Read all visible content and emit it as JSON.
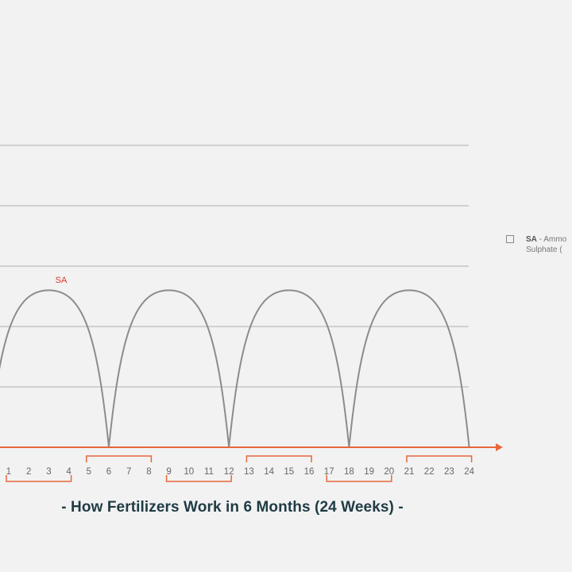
{
  "chart_data": {
    "type": "line",
    "title": "- How Fertilizers Work in 6 Months (24 Weeks) -",
    "xlabel": "",
    "ylabel": "",
    "x_ticks": [
      "1",
      "2",
      "3",
      "4",
      "5",
      "6",
      "7",
      "8",
      "9",
      "10",
      "11",
      "12",
      "13",
      "14",
      "15",
      "16",
      "17",
      "18",
      "19",
      "20",
      "21",
      "22",
      "23",
      "24"
    ],
    "xlim": [
      0,
      24
    ],
    "ylim": [
      0,
      5
    ],
    "grid": true,
    "series": [
      {
        "label": "SA",
        "x": [
          0,
          3,
          6,
          9,
          12,
          15,
          18,
          21,
          24
        ],
        "y": [
          0,
          2.6,
          0,
          2.6,
          0,
          2.6,
          0,
          2.6,
          0
        ],
        "shape": "arches"
      }
    ],
    "month_brackets": [
      [
        1,
        4
      ],
      [
        5,
        8
      ],
      [
        9,
        12
      ],
      [
        13,
        16
      ],
      [
        17,
        20
      ],
      [
        21,
        24
      ]
    ],
    "legend": {
      "abbr": "SA",
      "line1_rest": " - Ammo",
      "line2": "Sulphate (",
      "placement": "right"
    },
    "colors": {
      "axis": "#e8683a",
      "line": "#8c8c8c",
      "grid": "#bdbdbd",
      "title": "#1f3b44",
      "series_label": "#d9382b"
    }
  }
}
